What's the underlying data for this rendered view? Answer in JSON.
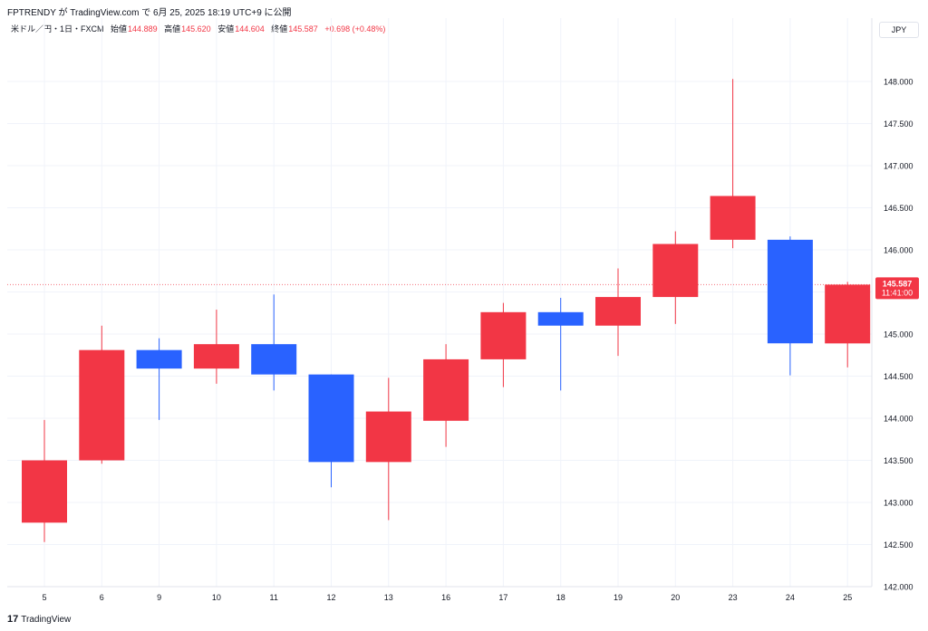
{
  "header": {
    "text": "FPTRENDY が TradingView.com で 6月 25, 2025 18:19 UTC+9 に公開"
  },
  "legend": {
    "symbol": "米ドル／円・1日・FXCM",
    "open_label": "始値",
    "open": "144.889",
    "high_label": "高値",
    "high": "145.620",
    "low_label": "安値",
    "low": "144.604",
    "close_label": "終値",
    "close": "145.587",
    "change": "+0.698 (+0.48%)"
  },
  "currency_button": "JPY",
  "price_tag": {
    "price": "145.587",
    "countdown": "11:41:00"
  },
  "footer": {
    "logo": "17",
    "brand": "TradingView"
  },
  "colors": {
    "up": "#f23645",
    "down": "#2962ff",
    "grid": "#f0f3fa",
    "text": "#131722"
  },
  "chart_data": {
    "type": "candlestick",
    "categories": [
      "5",
      "6",
      "9",
      "10",
      "11",
      "12",
      "13",
      "16",
      "17",
      "18",
      "19",
      "20",
      "23",
      "24",
      "25"
    ],
    "series": [
      {
        "open": 142.76,
        "high": 143.98,
        "low": 142.53,
        "close": 143.5
      },
      {
        "open": 143.5,
        "high": 145.1,
        "low": 143.46,
        "close": 144.81
      },
      {
        "open": 144.81,
        "high": 144.95,
        "low": 143.98,
        "close": 144.59
      },
      {
        "open": 144.59,
        "high": 145.29,
        "low": 144.41,
        "close": 144.88
      },
      {
        "open": 144.88,
        "high": 145.47,
        "low": 144.33,
        "close": 144.52
      },
      {
        "open": 144.52,
        "high": 144.52,
        "low": 143.18,
        "close": 143.48
      },
      {
        "open": 143.48,
        "high": 144.48,
        "low": 142.79,
        "close": 144.08
      },
      {
        "open": 143.97,
        "high": 144.88,
        "low": 143.66,
        "close": 144.7
      },
      {
        "open": 144.7,
        "high": 145.37,
        "low": 144.37,
        "close": 145.26
      },
      {
        "open": 145.26,
        "high": 145.43,
        "low": 144.33,
        "close": 145.1
      },
      {
        "open": 145.1,
        "high": 145.78,
        "low": 144.74,
        "close": 145.44
      },
      {
        "open": 145.44,
        "high": 146.22,
        "low": 145.12,
        "close": 146.07
      },
      {
        "open": 146.12,
        "high": 148.03,
        "low": 146.02,
        "close": 146.64
      },
      {
        "open": 146.12,
        "high": 146.16,
        "low": 144.51,
        "close": 144.89
      },
      {
        "open": 144.889,
        "high": 145.62,
        "low": 144.604,
        "close": 145.587
      }
    ],
    "yticks": [
      "142.000",
      "142.500",
      "143.000",
      "143.500",
      "144.000",
      "144.500",
      "145.000",
      "145.500",
      "146.000",
      "146.500",
      "147.000",
      "147.500",
      "148.000"
    ],
    "ylim": [
      142.0,
      148.5
    ],
    "last_price": 145.587,
    "grid": true
  }
}
